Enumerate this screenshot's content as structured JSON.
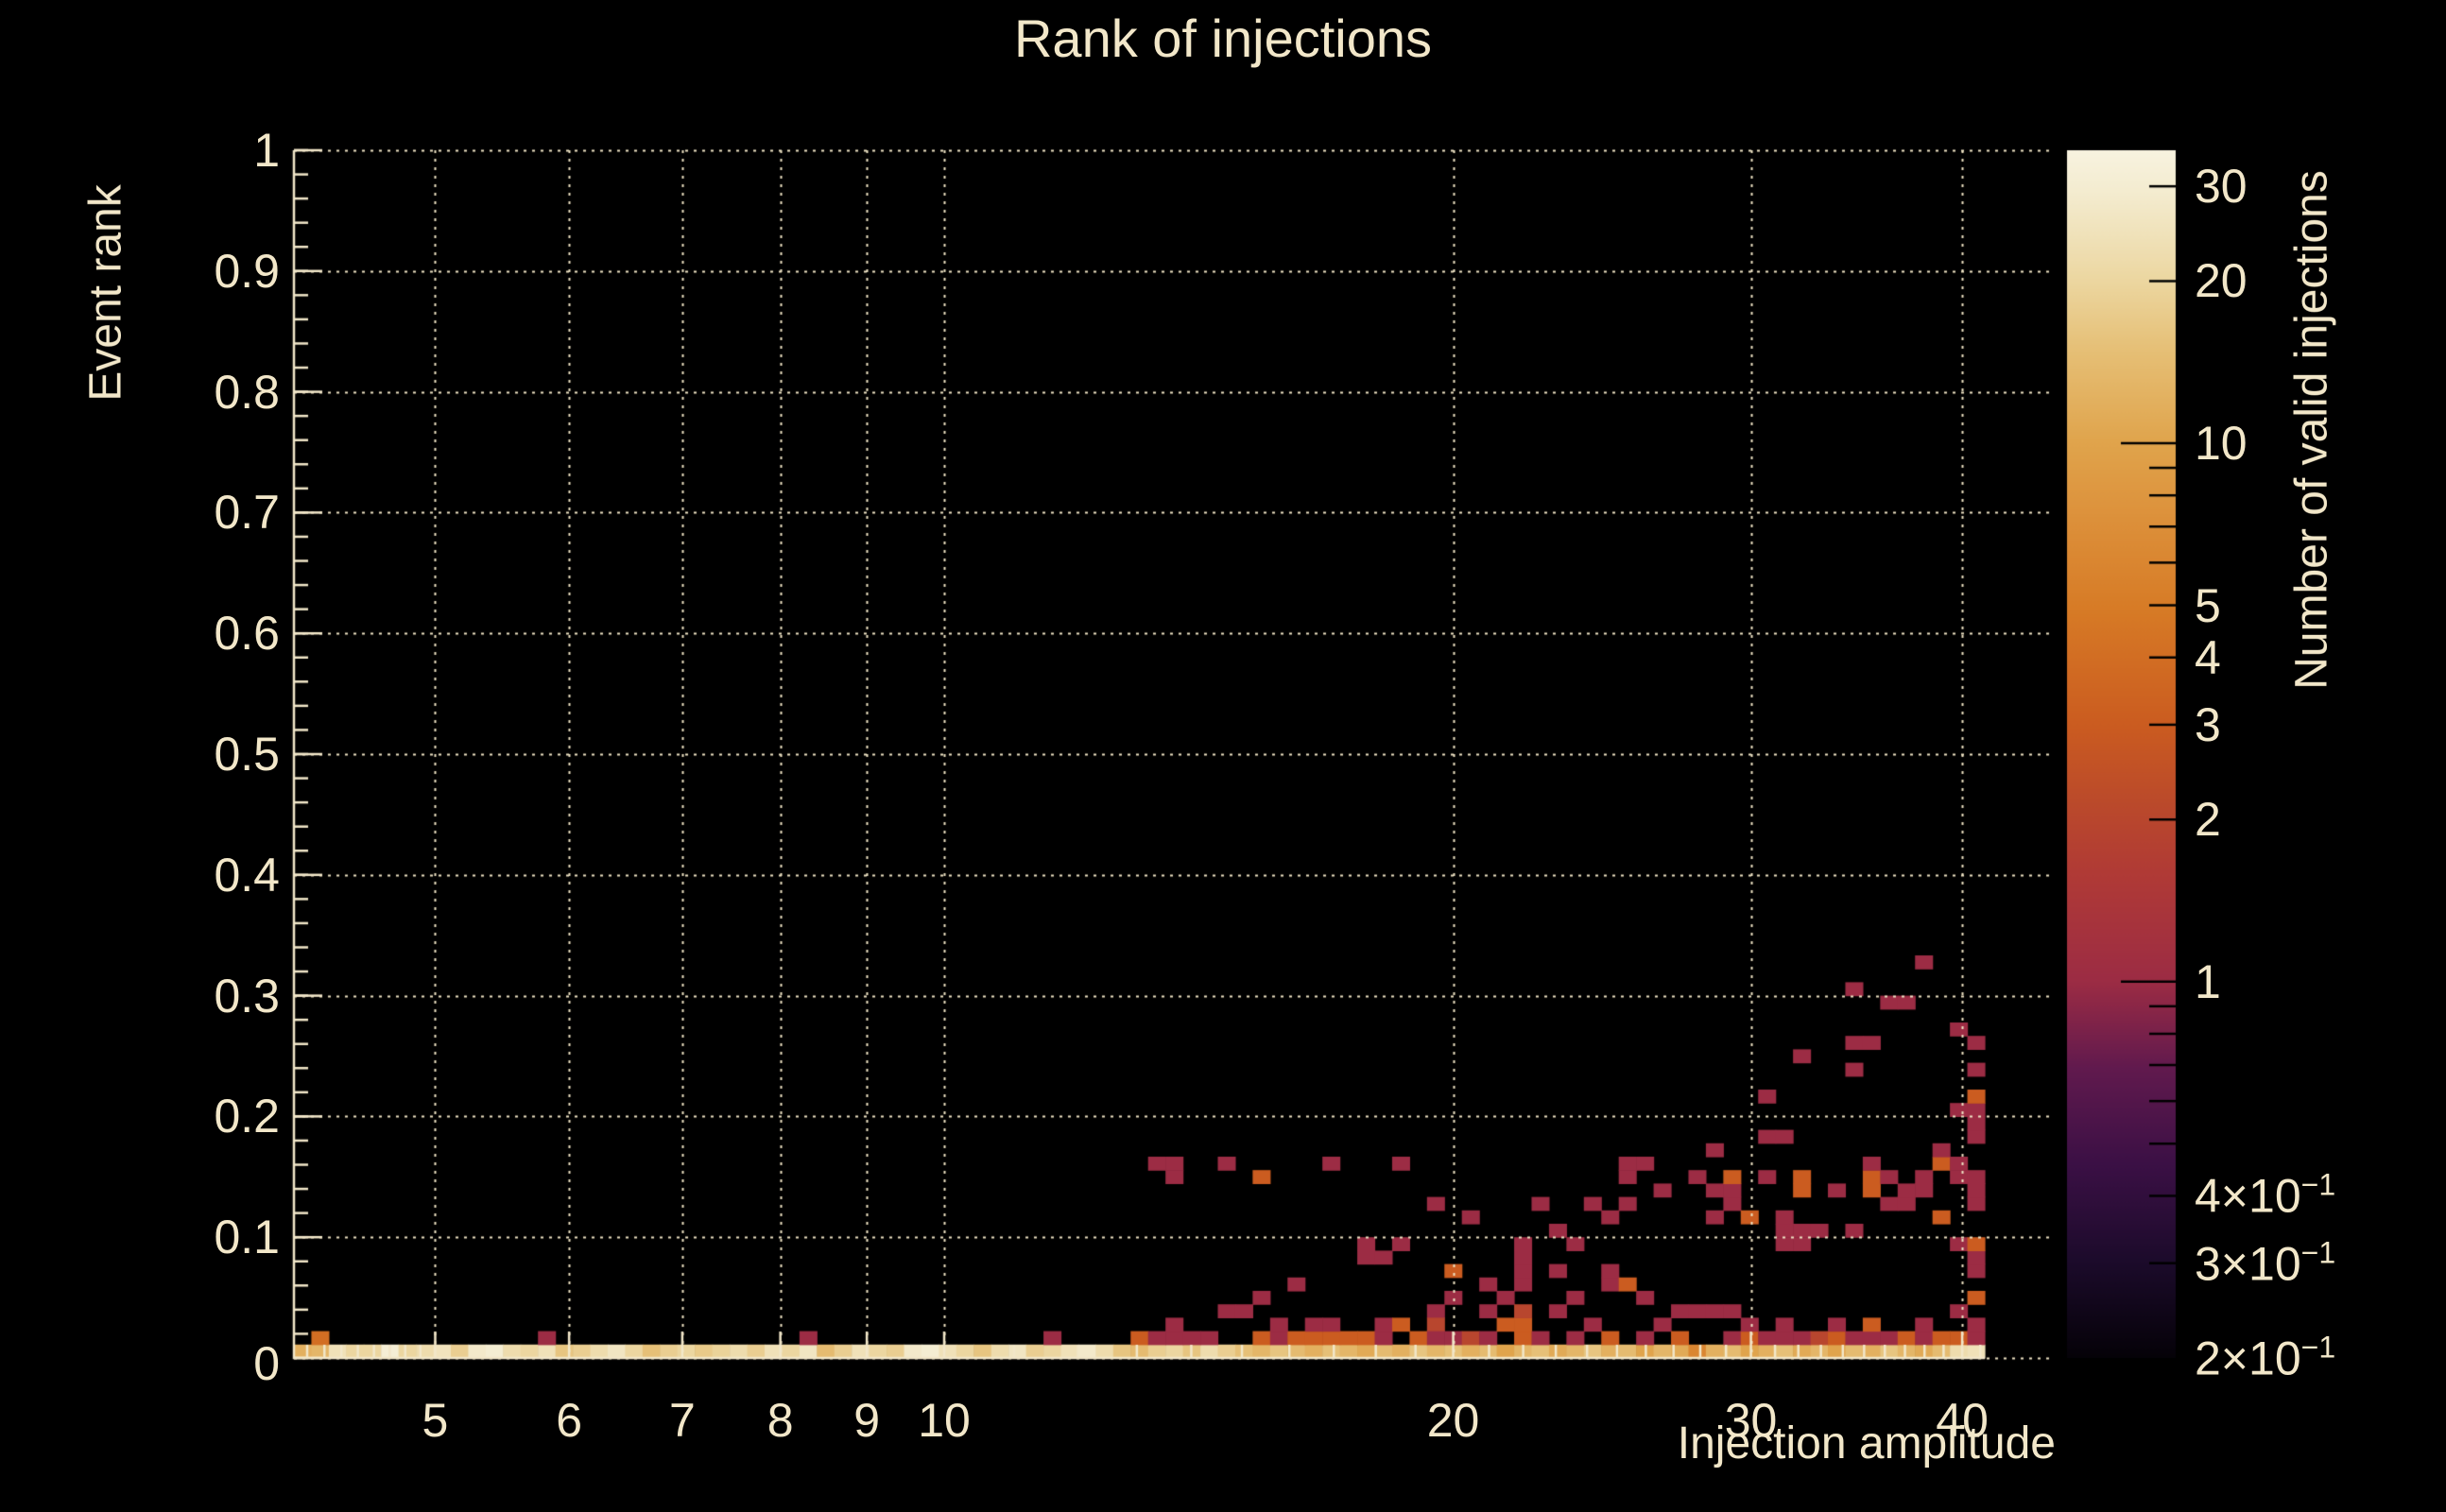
{
  "title": "Rank of injections",
  "axes": {
    "x_label": "Injection amplitude",
    "y_label": "Event rank",
    "z_label": "Number of valid injections"
  },
  "colors": {
    "background": "#000000",
    "text": "#f2e7c9",
    "grid": "#efe4c4",
    "axis": "#f2e7c9",
    "colorbar_tick": "#000000"
  },
  "chart_data": {
    "type": "heatmap",
    "title": "Rank of injections",
    "xlabel": "Injection amplitude",
    "ylabel": "Event rank",
    "zlabel": "Number of valid injections",
    "x_scale": "log",
    "x_range": [
      4.125,
      41.25
    ],
    "n_x_bins": 97,
    "y_scale": "linear",
    "y_range": [
      0,
      1
    ],
    "n_y_bins": 90,
    "z_scale": "log",
    "z_range": [
      0.2,
      35
    ],
    "grid": true,
    "legend_position": "right-colorbar",
    "x_ticks": [
      {
        "v": 5,
        "label": "5"
      },
      {
        "v": 6,
        "label": "6"
      },
      {
        "v": 7,
        "label": "7"
      },
      {
        "v": 8,
        "label": "8"
      },
      {
        "v": 9,
        "label": "9"
      },
      {
        "v": 10,
        "label": "10"
      },
      {
        "v": 20,
        "label": "20"
      },
      {
        "v": 30,
        "label": "30"
      },
      {
        "v": 40,
        "label": "40"
      }
    ],
    "x_minor_ticks": [
      4.2,
      4.3,
      4.4,
      4.5,
      4.6,
      4.7,
      4.8,
      4.9,
      11,
      12,
      13,
      14,
      15,
      16,
      17,
      18,
      19,
      21,
      22,
      23,
      24,
      25,
      26,
      27,
      28,
      29,
      31,
      32,
      33,
      34,
      35,
      36,
      37,
      38,
      39,
      41
    ],
    "y_ticks": [
      {
        "v": 0,
        "label": "0"
      },
      {
        "v": 0.1,
        "label": "0.1"
      },
      {
        "v": 0.2,
        "label": "0.2"
      },
      {
        "v": 0.3,
        "label": "0.3"
      },
      {
        "v": 0.4,
        "label": "0.4"
      },
      {
        "v": 0.5,
        "label": "0.5"
      },
      {
        "v": 0.6,
        "label": "0.6"
      },
      {
        "v": 0.7,
        "label": "0.7"
      },
      {
        "v": 0.8,
        "label": "0.8"
      },
      {
        "v": 0.9,
        "label": "0.9"
      },
      {
        "v": 1,
        "label": "1"
      }
    ],
    "y_minor_step": 0.02,
    "z_ticks": [
      {
        "v": 30,
        "label": "30"
      },
      {
        "v": 20,
        "label": "20"
      },
      {
        "v": 10,
        "label": "10"
      },
      {
        "v": 5,
        "label": "5"
      },
      {
        "v": 4,
        "label": "4"
      },
      {
        "v": 3,
        "label": "3"
      },
      {
        "v": 2,
        "label": "2"
      },
      {
        "v": 1,
        "label": "1"
      },
      {
        "v": 0.4,
        "label": "4×10",
        "sup": "−1"
      },
      {
        "v": 0.3,
        "label": "3×10",
        "sup": "−1"
      },
      {
        "v": 0.2,
        "label": "2×10",
        "sup": "−1"
      }
    ],
    "z_major_ticks": [
      1,
      10
    ],
    "z_minor_ticks": [
      0.3,
      0.4,
      0.5,
      0.6,
      0.7,
      0.8,
      0.9,
      2,
      3,
      4,
      5,
      6,
      7,
      8,
      9,
      20,
      30
    ],
    "colormap": [
      [
        0.0,
        "#050208"
      ],
      [
        0.08,
        "#1c0b2b"
      ],
      [
        0.16,
        "#3b1045"
      ],
      [
        0.24,
        "#611a4e"
      ],
      [
        0.312,
        "#9c2c44"
      ],
      [
        0.4,
        "#b03a36"
      ],
      [
        0.46,
        "#bb4a2b"
      ],
      [
        0.525,
        "#cb5c20"
      ],
      [
        0.62,
        "#d77b26"
      ],
      [
        0.7,
        "#dd923c"
      ],
      [
        0.758,
        "#e0a44c"
      ],
      [
        0.836,
        "#e6c077"
      ],
      [
        0.89,
        "#ecd69f"
      ],
      [
        0.93,
        "#f0e2ba"
      ],
      [
        0.966,
        "#f4ecd0"
      ],
      [
        1.0,
        "#f8f3e0"
      ]
    ],
    "bottom_row_y_bin": 0,
    "bottom_row": [
      12,
      13,
      24,
      20,
      20,
      31,
      20,
      22,
      25,
      18,
      28,
      30,
      22,
      20,
      24,
      16,
      18,
      22,
      26,
      20,
      15,
      18,
      20,
      17,
      19,
      22,
      18,
      24,
      20,
      26,
      14,
      18,
      24,
      20,
      18,
      28,
      30,
      24,
      20,
      16,
      22,
      26,
      18,
      20,
      24,
      28,
      22,
      16,
      14,
      18,
      20,
      16,
      22,
      18,
      15,
      13,
      16,
      14,
      12,
      15,
      13,
      11,
      14,
      12,
      16,
      13,
      15,
      12,
      14,
      10,
      13,
      15,
      11,
      13,
      16,
      12,
      14,
      10,
      13,
      11,
      6,
      12,
      14,
      10,
      12,
      15,
      11,
      13,
      10,
      14,
      12,
      16,
      13,
      11,
      14,
      22,
      24
    ],
    "cells": [
      [
        1,
        1,
        4
      ],
      [
        14,
        1,
        1
      ],
      [
        29,
        1,
        1
      ],
      [
        43,
        1,
        1
      ],
      [
        48,
        1,
        3
      ],
      [
        49,
        1,
        1
      ],
      [
        50,
        1,
        1
      ],
      [
        51,
        1,
        1
      ],
      [
        52,
        1,
        1
      ],
      [
        50,
        2,
        1
      ],
      [
        53,
        3,
        1
      ],
      [
        54,
        3,
        1
      ],
      [
        55,
        4,
        1
      ],
      [
        57,
        5,
        1
      ],
      [
        55,
        1,
        3
      ],
      [
        56,
        1,
        1
      ],
      [
        57,
        1,
        3
      ],
      [
        58,
        1,
        3
      ],
      [
        59,
        1,
        3
      ],
      [
        60,
        1,
        3
      ],
      [
        61,
        1,
        3
      ],
      [
        62,
        1,
        1
      ],
      [
        56,
        2,
        1
      ],
      [
        58,
        2,
        1
      ],
      [
        59,
        2,
        1
      ],
      [
        62,
        2,
        1
      ],
      [
        63,
        2,
        3
      ],
      [
        61,
        7,
        1
      ],
      [
        61,
        8,
        1
      ],
      [
        62,
        7,
        1
      ],
      [
        63,
        8,
        1
      ],
      [
        49,
        14,
        1
      ],
      [
        50,
        14,
        1
      ],
      [
        50,
        13,
        1
      ],
      [
        53,
        14,
        1
      ],
      [
        55,
        13,
        3
      ],
      [
        59,
        14,
        1
      ],
      [
        63,
        14,
        1
      ],
      [
        65,
        11,
        1
      ],
      [
        67,
        10,
        1
      ],
      [
        66,
        6,
        3
      ],
      [
        66,
        4,
        1
      ],
      [
        65,
        3,
        1
      ],
      [
        65,
        2,
        2
      ],
      [
        64,
        1,
        3
      ],
      [
        65,
        1,
        1
      ],
      [
        66,
        1,
        1
      ],
      [
        67,
        1,
        2
      ],
      [
        68,
        1,
        1
      ],
      [
        68,
        3,
        1
      ],
      [
        68,
        5,
        1
      ],
      [
        69,
        4,
        1
      ],
      [
        69,
        2,
        3
      ],
      [
        70,
        1,
        3
      ],
      [
        70,
        2,
        3
      ],
      [
        70,
        3,
        2
      ],
      [
        70,
        5,
        1
      ],
      [
        70,
        6,
        1
      ],
      [
        70,
        7,
        1
      ],
      [
        70,
        8,
        1
      ],
      [
        71,
        1,
        1
      ],
      [
        71,
        11,
        1
      ],
      [
        72,
        3,
        1
      ],
      [
        72,
        6,
        1
      ],
      [
        72,
        9,
        1
      ],
      [
        73,
        1,
        1
      ],
      [
        73,
        4,
        1
      ],
      [
        73,
        8,
        1
      ],
      [
        74,
        2,
        1
      ],
      [
        74,
        11,
        1
      ],
      [
        75,
        1,
        3
      ],
      [
        75,
        5,
        1
      ],
      [
        75,
        6,
        1
      ],
      [
        75,
        10,
        1
      ],
      [
        76,
        5,
        3
      ],
      [
        76,
        11,
        1
      ],
      [
        76,
        13,
        1
      ],
      [
        76,
        14,
        1
      ],
      [
        77,
        1,
        1
      ],
      [
        77,
        4,
        1
      ],
      [
        77,
        14,
        1
      ],
      [
        78,
        2,
        1
      ],
      [
        78,
        12,
        1
      ],
      [
        79,
        1,
        3
      ],
      [
        79,
        3,
        1
      ],
      [
        80,
        3,
        1
      ],
      [
        80,
        13,
        1
      ],
      [
        81,
        3,
        1
      ],
      [
        81,
        10,
        1
      ],
      [
        81,
        12,
        1
      ],
      [
        81,
        15,
        1
      ],
      [
        82,
        1,
        1
      ],
      [
        82,
        3,
        1
      ],
      [
        82,
        11,
        1
      ],
      [
        82,
        12,
        1
      ],
      [
        82,
        13,
        3
      ],
      [
        83,
        1,
        3
      ],
      [
        83,
        2,
        1
      ],
      [
        83,
        10,
        3
      ],
      [
        84,
        1,
        1
      ],
      [
        84,
        13,
        1
      ],
      [
        84,
        16,
        1
      ],
      [
        84,
        19,
        1
      ],
      [
        85,
        1,
        1
      ],
      [
        85,
        2,
        1
      ],
      [
        85,
        8,
        1
      ],
      [
        85,
        9,
        1
      ],
      [
        85,
        10,
        1
      ],
      [
        85,
        16,
        1
      ],
      [
        86,
        1,
        1
      ],
      [
        86,
        8,
        1
      ],
      [
        86,
        9,
        1
      ],
      [
        86,
        12,
        3
      ],
      [
        86,
        13,
        3
      ],
      [
        86,
        22,
        1
      ],
      [
        87,
        1,
        2
      ],
      [
        87,
        9,
        1
      ],
      [
        88,
        1,
        3
      ],
      [
        88,
        2,
        1
      ],
      [
        88,
        12,
        1
      ],
      [
        89,
        1,
        1
      ],
      [
        89,
        9,
        1
      ],
      [
        89,
        21,
        1
      ],
      [
        89,
        23,
        1
      ],
      [
        89,
        27,
        1
      ],
      [
        90,
        1,
        1
      ],
      [
        90,
        2,
        3
      ],
      [
        90,
        12,
        3
      ],
      [
        90,
        13,
        3
      ],
      [
        90,
        14,
        1
      ],
      [
        90,
        23,
        1
      ],
      [
        91,
        1,
        1
      ],
      [
        91,
        11,
        1
      ],
      [
        91,
        13,
        1
      ],
      [
        91,
        26,
        1
      ],
      [
        92,
        1,
        3
      ],
      [
        92,
        11,
        1
      ],
      [
        92,
        12,
        1
      ],
      [
        92,
        26,
        1
      ],
      [
        93,
        1,
        1
      ],
      [
        93,
        2,
        1
      ],
      [
        93,
        12,
        1
      ],
      [
        93,
        13,
        1
      ],
      [
        93,
        29,
        1
      ],
      [
        94,
        1,
        3
      ],
      [
        94,
        10,
        3
      ],
      [
        94,
        14,
        3
      ],
      [
        94,
        15,
        1
      ],
      [
        95,
        1,
        3
      ],
      [
        95,
        3,
        1
      ],
      [
        95,
        8,
        1
      ],
      [
        95,
        13,
        1
      ],
      [
        95,
        14,
        1
      ],
      [
        95,
        18,
        1
      ],
      [
        95,
        24,
        1
      ],
      [
        96,
        1,
        1
      ],
      [
        96,
        2,
        1
      ],
      [
        96,
        4,
        3
      ],
      [
        96,
        6,
        1
      ],
      [
        96,
        7,
        1
      ],
      [
        96,
        8,
        3
      ],
      [
        96,
        11,
        1
      ],
      [
        96,
        12,
        1
      ],
      [
        96,
        13,
        1
      ],
      [
        96,
        16,
        1
      ],
      [
        96,
        17,
        1
      ],
      [
        96,
        18,
        1
      ],
      [
        96,
        19,
        3
      ],
      [
        96,
        21,
        1
      ],
      [
        96,
        23,
        1
      ]
    ]
  }
}
